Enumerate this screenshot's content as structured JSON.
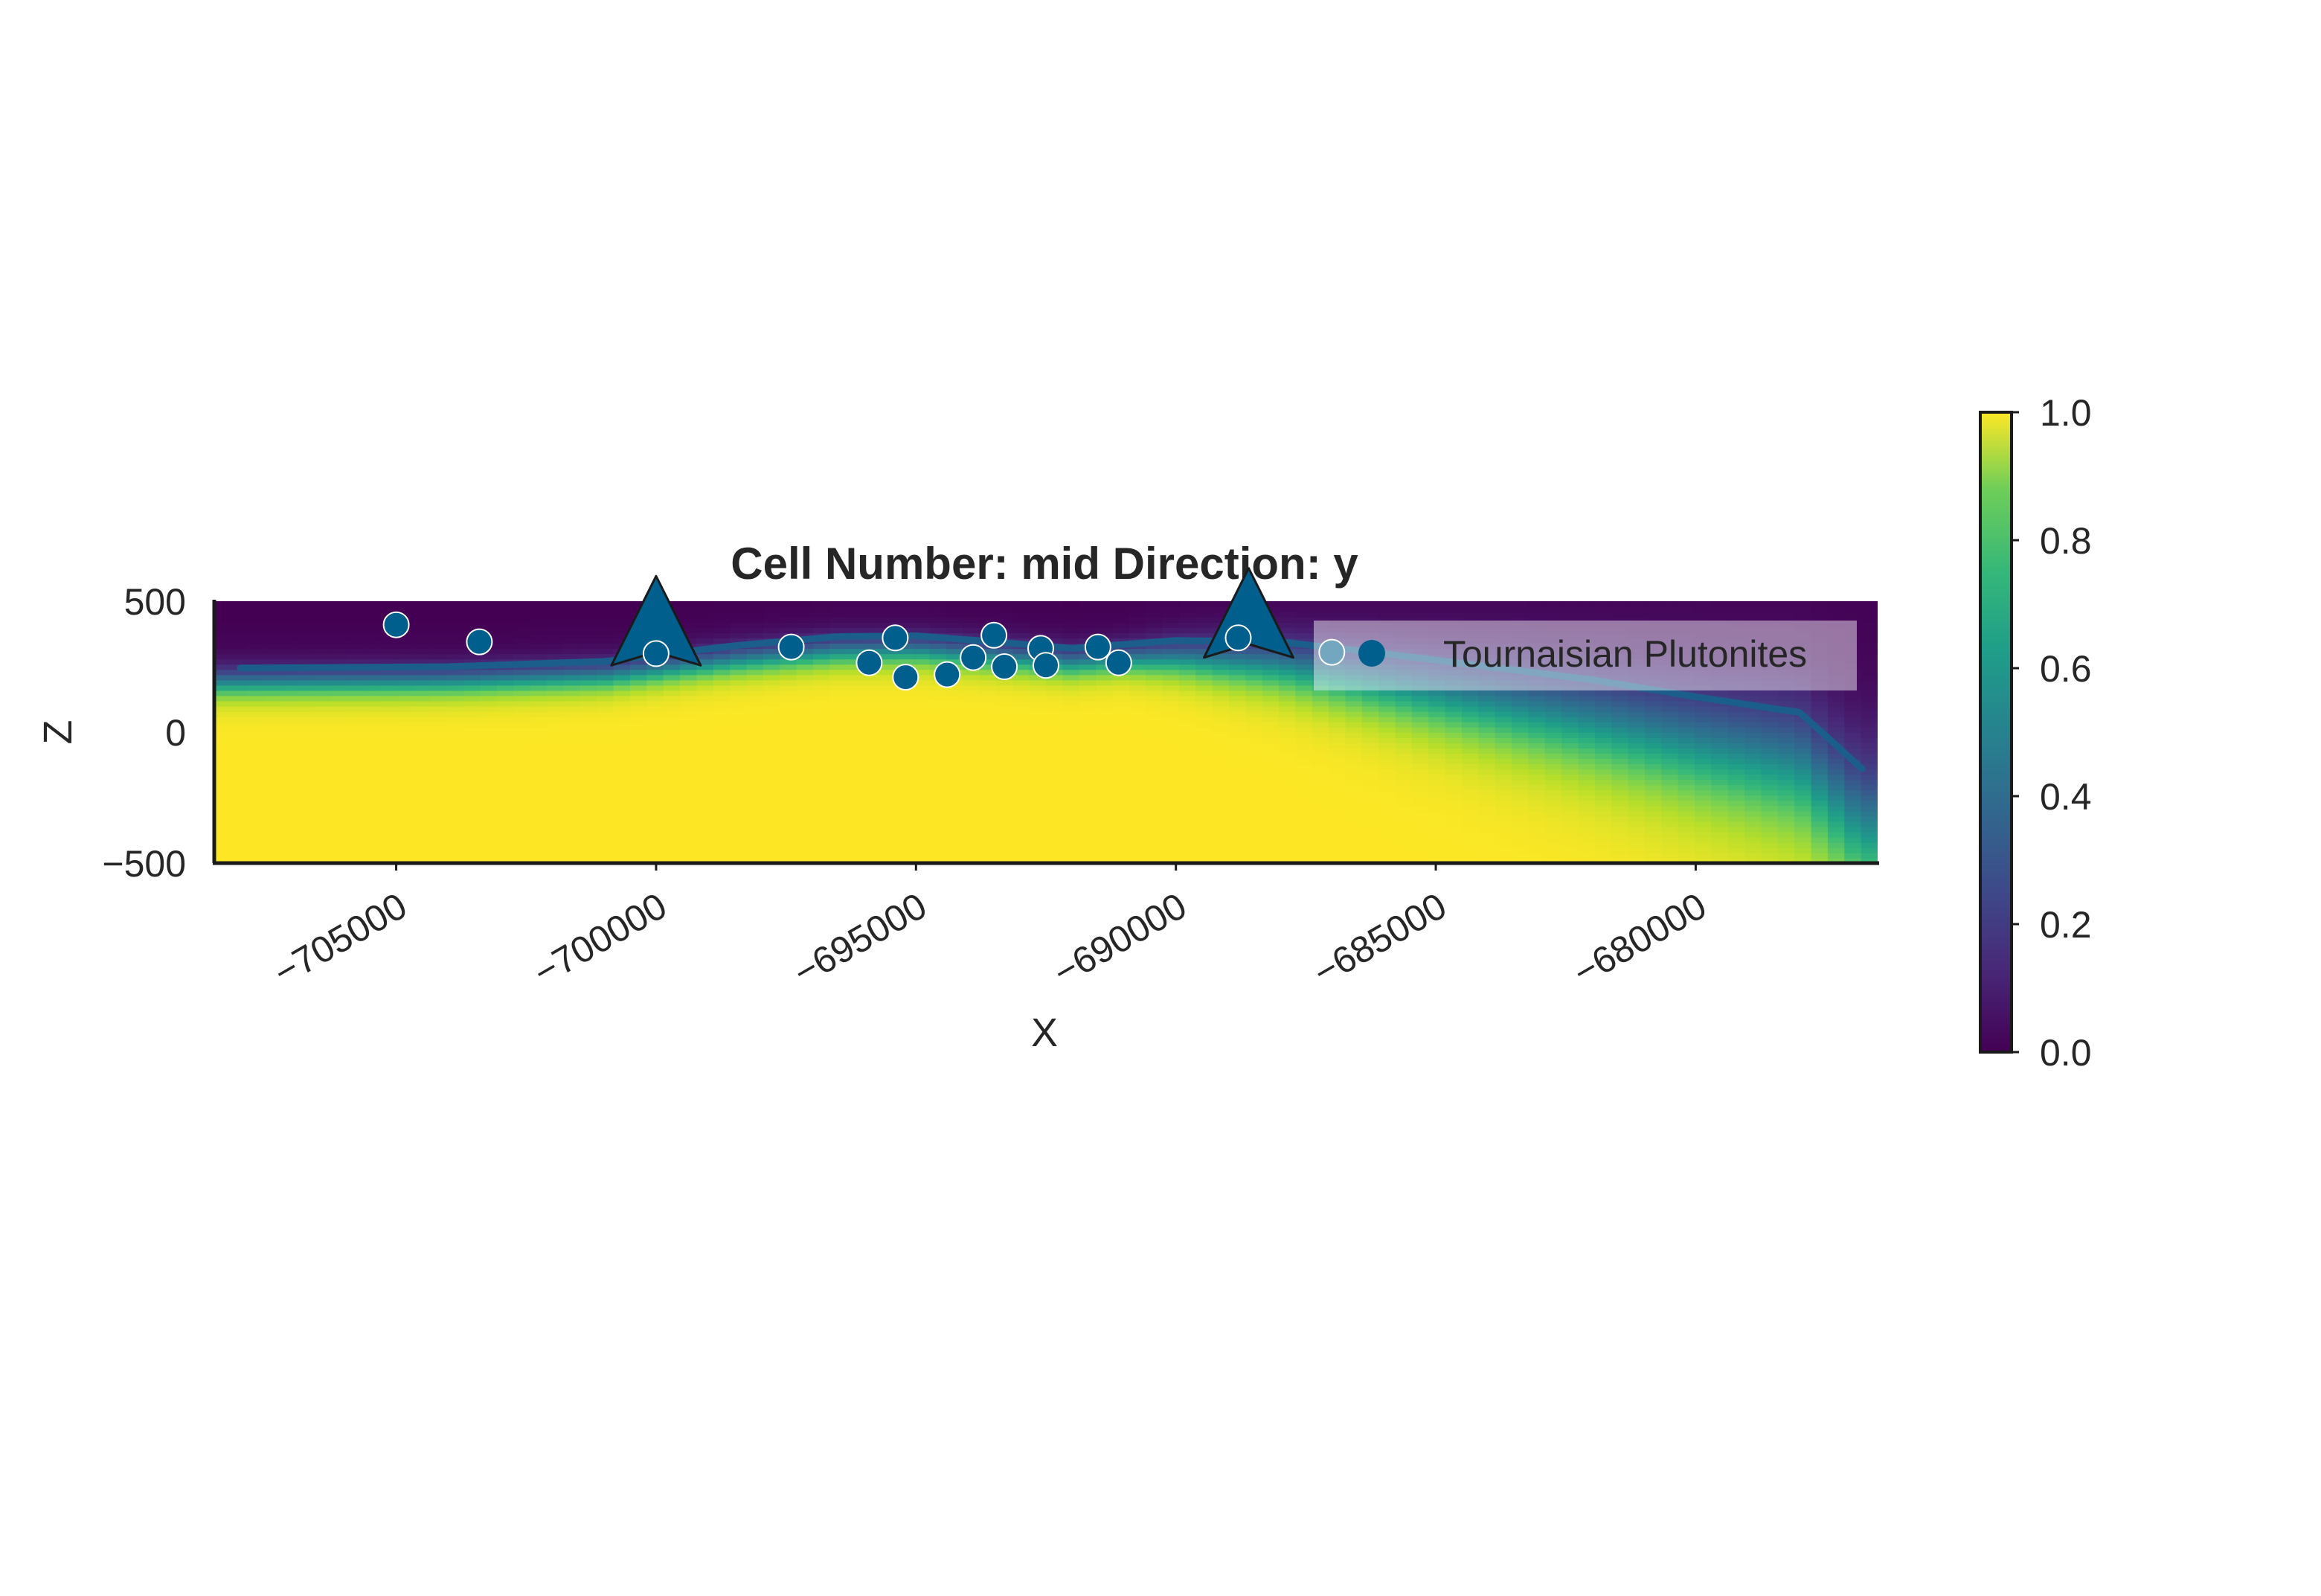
{
  "chart_data": {
    "type": "heatmap",
    "title": "Cell Number: mid Direction: y",
    "xlabel": "X",
    "ylabel": "Z",
    "xlim": [
      -708500,
      -676500
    ],
    "ylim": [
      -500,
      500
    ],
    "x_ticks": [
      -705000,
      -700000,
      -695000,
      -690000,
      -685000,
      -680000
    ],
    "x_tick_labels": [
      "−705000",
      "−700000",
      "−695000",
      "−690000",
      "−685000",
      "−680000"
    ],
    "y_ticks": [
      500,
      0,
      -500
    ],
    "y_tick_labels": [
      "500",
      "0",
      "−500"
    ],
    "grid": false,
    "colormap": "viridis",
    "colorbar": {
      "range": [
        0.0,
        1.0
      ],
      "ticks": [
        0.0,
        0.2,
        0.4,
        0.6,
        0.8,
        1.0
      ],
      "tick_labels": [
        "0.0",
        "0.2",
        "0.4",
        "0.6",
        "0.8",
        "1.0"
      ]
    },
    "field_description": "scalar field: near 1.0 deep/central dome, decreasing upward to near 0.0 at top, tilting down toward the east",
    "surface_line": {
      "color": "#1b5e8c",
      "x": [
        -708000,
        -704000,
        -701000,
        -698500,
        -696500,
        -695000,
        -693500,
        -692000,
        -690000,
        -688000,
        -686000,
        -684000,
        -682000,
        -680000,
        -678000,
        -676800
      ],
      "z": [
        245,
        250,
        270,
        330,
        365,
        368,
        345,
        320,
        350,
        345,
        300,
        250,
        200,
        135,
        75,
        -140
      ]
    },
    "orientations": [
      {
        "x": -700000,
        "z": 380,
        "color": "#005f8c"
      },
      {
        "x": -688600,
        "z": 410,
        "color": "#005f8c"
      }
    ],
    "series": [
      {
        "name": "Tournaisian Plutonites",
        "color": "#005f8c",
        "points": [
          {
            "x": -705000,
            "z": 410
          },
          {
            "x": -703400,
            "z": 345
          },
          {
            "x": -700000,
            "z": 300
          },
          {
            "x": -697400,
            "z": 325
          },
          {
            "x": -695900,
            "z": 265
          },
          {
            "x": -695400,
            "z": 360
          },
          {
            "x": -695200,
            "z": 210
          },
          {
            "x": -694400,
            "z": 220
          },
          {
            "x": -693900,
            "z": 285
          },
          {
            "x": -693500,
            "z": 370
          },
          {
            "x": -693300,
            "z": 250
          },
          {
            "x": -692600,
            "z": 320
          },
          {
            "x": -692500,
            "z": 255
          },
          {
            "x": -691500,
            "z": 325
          },
          {
            "x": -691100,
            "z": 265
          },
          {
            "x": -688800,
            "z": 360
          },
          {
            "x": -687000,
            "z": 305
          }
        ]
      }
    ],
    "legend": {
      "position": "upper-right",
      "entries": [
        "Tournaisian Plutonites"
      ]
    }
  }
}
